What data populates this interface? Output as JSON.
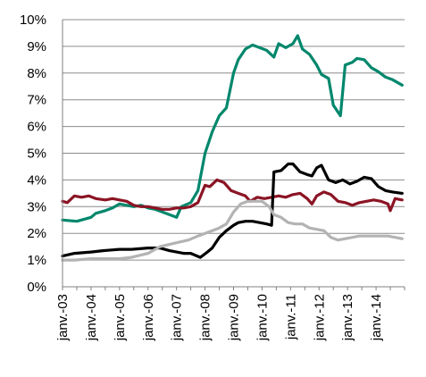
{
  "chart_data": {
    "type": "line",
    "title": "",
    "xlabel": "",
    "ylabel": "",
    "ylim": [
      0,
      10
    ],
    "y_tick_labels": [
      "0%",
      "1%",
      "2%",
      "3%",
      "4%",
      "5%",
      "6%",
      "7%",
      "8%",
      "9%",
      "10%"
    ],
    "x_tick_labels": [
      "janv.-03",
      "janv.-04",
      "janv.-05",
      "janv.-06",
      "janv.-07",
      "janv.-08",
      "janv.-09",
      "janv.-10",
      "janv.-11",
      "janv.-12",
      "janv.-13",
      "janv.-14"
    ],
    "x_range": [
      "2003-01",
      "2014-12"
    ],
    "grid": "horizontal",
    "legend": "none",
    "series": [
      {
        "color": "#00876c",
        "points": [
          [
            "2003-01",
            2.5
          ],
          [
            "2003-07",
            2.45
          ],
          [
            "2004-01",
            2.6
          ],
          [
            "2004-03",
            2.75
          ],
          [
            "2004-07",
            2.85
          ],
          [
            "2004-10",
            2.95
          ],
          [
            "2005-01",
            3.1
          ],
          [
            "2005-04",
            3.05
          ],
          [
            "2005-07",
            3.0
          ],
          [
            "2005-10",
            3.05
          ],
          [
            "2006-01",
            2.95
          ],
          [
            "2006-04",
            2.9
          ],
          [
            "2006-07",
            2.8
          ],
          [
            "2006-10",
            2.7
          ],
          [
            "2007-01",
            2.6
          ],
          [
            "2007-03",
            3.0
          ],
          [
            "2007-07",
            3.15
          ],
          [
            "2007-10",
            3.6
          ],
          [
            "2008-01",
            5.0
          ],
          [
            "2008-04",
            5.8
          ],
          [
            "2008-07",
            6.4
          ],
          [
            "2008-10",
            6.7
          ],
          [
            "2009-01",
            8.0
          ],
          [
            "2009-03",
            8.5
          ],
          [
            "2009-06",
            8.9
          ],
          [
            "2009-09",
            9.05
          ],
          [
            "2009-12",
            8.95
          ],
          [
            "2010-03",
            8.85
          ],
          [
            "2010-06",
            8.6
          ],
          [
            "2010-08",
            9.1
          ],
          [
            "2010-11",
            8.95
          ],
          [
            "2011-02",
            9.1
          ],
          [
            "2011-04",
            9.4
          ],
          [
            "2011-06",
            8.9
          ],
          [
            "2011-09",
            8.7
          ],
          [
            "2011-12",
            8.3
          ],
          [
            "2012-02",
            7.95
          ],
          [
            "2012-05",
            7.8
          ],
          [
            "2012-07",
            6.8
          ],
          [
            "2012-10",
            6.4
          ],
          [
            "2012-12",
            8.3
          ],
          [
            "2013-03",
            8.4
          ],
          [
            "2013-05",
            8.55
          ],
          [
            "2013-08",
            8.5
          ],
          [
            "2013-11",
            8.2
          ],
          [
            "2014-02",
            8.05
          ],
          [
            "2014-05",
            7.85
          ],
          [
            "2014-08",
            7.75
          ],
          [
            "2014-12",
            7.55
          ]
        ]
      },
      {
        "color": "#8b1424",
        "points": [
          [
            "2003-01",
            3.2
          ],
          [
            "2003-03",
            3.15
          ],
          [
            "2003-06",
            3.4
          ],
          [
            "2003-09",
            3.35
          ],
          [
            "2003-12",
            3.4
          ],
          [
            "2004-03",
            3.3
          ],
          [
            "2004-07",
            3.25
          ],
          [
            "2004-10",
            3.3
          ],
          [
            "2005-01",
            3.25
          ],
          [
            "2005-04",
            3.2
          ],
          [
            "2005-07",
            3.05
          ],
          [
            "2005-10",
            3.0
          ],
          [
            "2006-01",
            3.0
          ],
          [
            "2006-04",
            2.95
          ],
          [
            "2006-07",
            2.9
          ],
          [
            "2006-10",
            2.9
          ],
          [
            "2007-01",
            2.95
          ],
          [
            "2007-04",
            2.95
          ],
          [
            "2007-07",
            3.0
          ],
          [
            "2007-10",
            3.15
          ],
          [
            "2008-01",
            3.8
          ],
          [
            "2008-03",
            3.75
          ],
          [
            "2008-06",
            4.0
          ],
          [
            "2008-09",
            3.9
          ],
          [
            "2008-12",
            3.6
          ],
          [
            "2009-03",
            3.5
          ],
          [
            "2009-06",
            3.4
          ],
          [
            "2009-08",
            3.2
          ],
          [
            "2009-11",
            3.35
          ],
          [
            "2010-02",
            3.3
          ],
          [
            "2010-05",
            3.35
          ],
          [
            "2010-08",
            3.4
          ],
          [
            "2010-11",
            3.35
          ],
          [
            "2011-02",
            3.45
          ],
          [
            "2011-05",
            3.5
          ],
          [
            "2011-08",
            3.3
          ],
          [
            "2011-10",
            3.1
          ],
          [
            "2011-12",
            3.4
          ],
          [
            "2012-03",
            3.55
          ],
          [
            "2012-06",
            3.45
          ],
          [
            "2012-09",
            3.2
          ],
          [
            "2012-12",
            3.15
          ],
          [
            "2013-03",
            3.05
          ],
          [
            "2013-06",
            3.15
          ],
          [
            "2013-09",
            3.2
          ],
          [
            "2013-12",
            3.25
          ],
          [
            "2014-03",
            3.2
          ],
          [
            "2014-06",
            3.1
          ],
          [
            "2014-07",
            2.85
          ],
          [
            "2014-09",
            3.3
          ],
          [
            "2014-12",
            3.25
          ]
        ]
      },
      {
        "color": "#000000",
        "points": [
          [
            "2003-01",
            1.15
          ],
          [
            "2003-06",
            1.25
          ],
          [
            "2004-01",
            1.3
          ],
          [
            "2004-06",
            1.35
          ],
          [
            "2005-01",
            1.4
          ],
          [
            "2005-06",
            1.4
          ],
          [
            "2006-01",
            1.45
          ],
          [
            "2006-06",
            1.45
          ],
          [
            "2006-10",
            1.35
          ],
          [
            "2007-01",
            1.3
          ],
          [
            "2007-04",
            1.25
          ],
          [
            "2007-07",
            1.25
          ],
          [
            "2007-11",
            1.1
          ],
          [
            "2008-02",
            1.3
          ],
          [
            "2008-04",
            1.45
          ],
          [
            "2008-07",
            1.85
          ],
          [
            "2008-10",
            2.1
          ],
          [
            "2009-01",
            2.3
          ],
          [
            "2009-03",
            2.4
          ],
          [
            "2009-06",
            2.45
          ],
          [
            "2009-09",
            2.45
          ],
          [
            "2009-12",
            2.4
          ],
          [
            "2010-03",
            2.35
          ],
          [
            "2010-05",
            2.3
          ],
          [
            "2010-06",
            4.3
          ],
          [
            "2010-09",
            4.35
          ],
          [
            "2010-12",
            4.6
          ],
          [
            "2011-02",
            4.6
          ],
          [
            "2011-05",
            4.3
          ],
          [
            "2011-08",
            4.2
          ],
          [
            "2011-10",
            4.15
          ],
          [
            "2011-12",
            4.45
          ],
          [
            "2012-02",
            4.55
          ],
          [
            "2012-05",
            4.0
          ],
          [
            "2012-08",
            3.9
          ],
          [
            "2012-11",
            4.0
          ],
          [
            "2013-02",
            3.85
          ],
          [
            "2013-05",
            3.95
          ],
          [
            "2013-08",
            4.1
          ],
          [
            "2013-11",
            4.05
          ],
          [
            "2014-02",
            3.75
          ],
          [
            "2014-05",
            3.6
          ],
          [
            "2014-08",
            3.55
          ],
          [
            "2014-12",
            3.5
          ]
        ]
      },
      {
        "color": "#b3b3b3",
        "points": [
          [
            "2003-01",
            1.0
          ],
          [
            "2003-06",
            1.0
          ],
          [
            "2004-01",
            1.05
          ],
          [
            "2004-06",
            1.05
          ],
          [
            "2005-01",
            1.05
          ],
          [
            "2005-06",
            1.1
          ],
          [
            "2006-01",
            1.25
          ],
          [
            "2006-06",
            1.5
          ],
          [
            "2007-01",
            1.65
          ],
          [
            "2007-06",
            1.75
          ],
          [
            "2007-10",
            1.9
          ],
          [
            "2008-01",
            2.0
          ],
          [
            "2008-04",
            2.1
          ],
          [
            "2008-07",
            2.2
          ],
          [
            "2008-10",
            2.35
          ],
          [
            "2009-01",
            2.8
          ],
          [
            "2009-04",
            3.1
          ],
          [
            "2009-07",
            3.2
          ],
          [
            "2009-10",
            3.2
          ],
          [
            "2010-01",
            3.2
          ],
          [
            "2010-04",
            3.0
          ],
          [
            "2010-06",
            2.7
          ],
          [
            "2010-09",
            2.6
          ],
          [
            "2010-12",
            2.4
          ],
          [
            "2011-03",
            2.35
          ],
          [
            "2011-06",
            2.35
          ],
          [
            "2011-09",
            2.2
          ],
          [
            "2011-12",
            2.15
          ],
          [
            "2012-03",
            2.1
          ],
          [
            "2012-06",
            1.85
          ],
          [
            "2012-09",
            1.75
          ],
          [
            "2012-12",
            1.8
          ],
          [
            "2013-03",
            1.85
          ],
          [
            "2013-06",
            1.9
          ],
          [
            "2013-09",
            1.9
          ],
          [
            "2013-12",
            1.9
          ],
          [
            "2014-03",
            1.9
          ],
          [
            "2014-06",
            1.9
          ],
          [
            "2014-09",
            1.85
          ],
          [
            "2014-12",
            1.8
          ]
        ]
      }
    ]
  }
}
